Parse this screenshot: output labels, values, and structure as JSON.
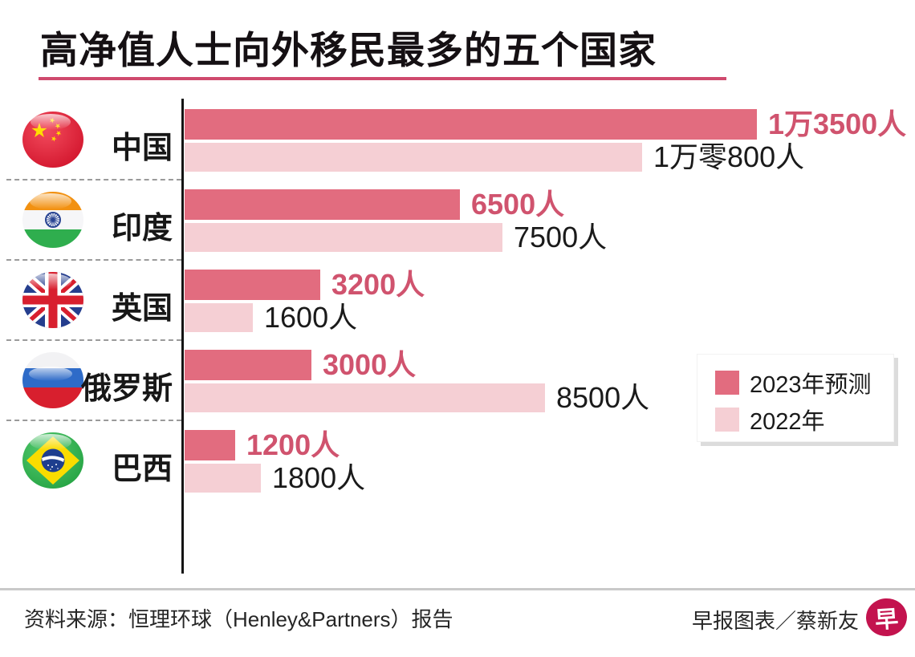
{
  "title": "高净值人士向外移民最多的五个国家",
  "chart_data": {
    "type": "bar",
    "orientation": "horizontal",
    "unit": "人",
    "x_max": 13500,
    "grid": false,
    "legend_position": "right-middle",
    "categories": [
      "中国",
      "印度",
      "英国",
      "俄罗斯",
      "巴西"
    ],
    "category_keys": [
      "china",
      "india",
      "uk",
      "russia",
      "brazil"
    ],
    "flag_icons": [
      "china-flag-icon",
      "india-flag-icon",
      "uk-flag-icon",
      "russia-flag-icon",
      "brazil-flag-icon"
    ],
    "series": [
      {
        "name": "2023年预测",
        "color": "#e26c7f",
        "label_color": "#d0536e",
        "values": [
          13500,
          6500,
          3200,
          3000,
          1200
        ],
        "value_labels": [
          "1万3500人",
          "6500人",
          "3200人",
          "3000人",
          "1200人"
        ]
      },
      {
        "name": "2022年",
        "color": "#f5cfd4",
        "label_color": "#1a1a1a",
        "values": [
          10800,
          7500,
          1600,
          8500,
          1800
        ],
        "value_labels": [
          "1万零800人",
          "7500人",
          "1600人",
          "8500人",
          "1800人"
        ]
      }
    ]
  },
  "legend": {
    "items": [
      {
        "label": "2023年预测",
        "color": "#e26c7f"
      },
      {
        "label": "2022年",
        "color": "#f5cfd4"
      }
    ]
  },
  "footer": {
    "source": "资料来源：恒理环球（Henley&Partners）报告",
    "credit": "早报图表／蔡新友",
    "logo_char": "早"
  },
  "colors": {
    "title_underline": "#cf4a6e",
    "axis": "#141414",
    "divider": "#c9c9c9",
    "logo_bg": "#c3134e"
  }
}
